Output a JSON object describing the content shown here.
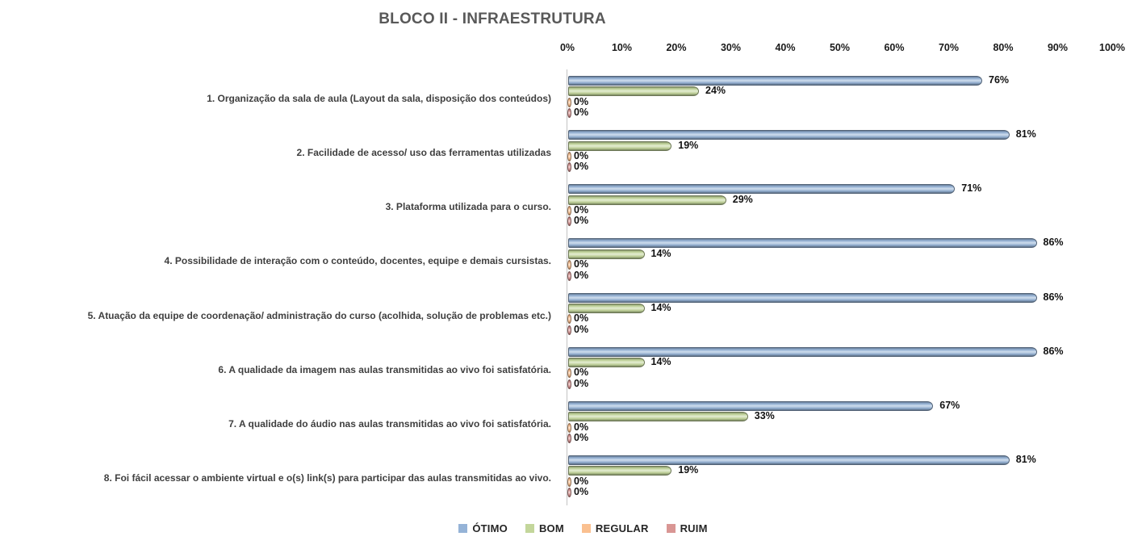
{
  "title": "BLOCO II - INFRAESTRUTURA",
  "chart_data": {
    "type": "bar",
    "orientation": "horizontal",
    "title": "BLOCO II - INFRAESTRUTURA",
    "categories": [
      "1. Organização da sala de aula (Layout da sala, disposição dos conteúdos)",
      "2. Facilidade de acesso/ uso das ferramentas utilizadas",
      "3. Plataforma utilizada para o curso.",
      "4. Possibilidade de interação com o conteúdo, docentes, equipe e demais cursistas.",
      "5. Atuação da equipe de coordenação/ administração do curso (acolhida, solução de problemas etc.)",
      "6. A qualidade da imagem nas aulas transmitidas ao vivo foi satisfatória.",
      "7. A qualidade do áudio nas aulas transmitidas ao vivo foi satisfatória.",
      "8. Foi fácil acessar o ambiente virtual e o(s) link(s) para participar das aulas transmitidas ao vivo."
    ],
    "series": [
      {
        "name": "ÓTIMO",
        "color": "#95B3D7",
        "values": [
          76,
          81,
          71,
          86,
          86,
          86,
          67,
          81
        ]
      },
      {
        "name": "BOM",
        "color": "#C3D69B",
        "values": [
          24,
          19,
          29,
          14,
          14,
          14,
          33,
          19
        ]
      },
      {
        "name": "REGULAR",
        "color": "#FAC090",
        "values": [
          0,
          0,
          0,
          0,
          0,
          0,
          0,
          0
        ]
      },
      {
        "name": "RUIM",
        "color": "#D99694",
        "values": [
          0,
          0,
          0,
          0,
          0,
          0,
          0,
          0
        ]
      }
    ],
    "x_ticks": [
      "0%",
      "10%",
      "20%",
      "30%",
      "40%",
      "50%",
      "60%",
      "70%",
      "80%",
      "90%",
      "100%"
    ],
    "xlim": [
      0,
      100
    ],
    "data_label_suffix": "%",
    "grid": false,
    "legend_position": "bottom"
  }
}
